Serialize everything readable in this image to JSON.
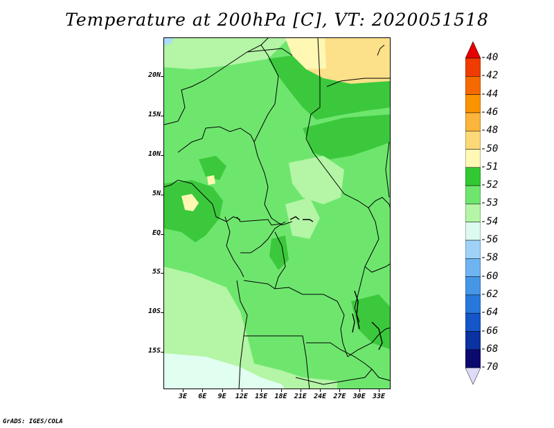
{
  "title": "Temperature at 200hPa [C], VT: 2020051518",
  "credit": "GrADS: IGES/COLA",
  "map": {
    "lat_labels": [
      "20N",
      "15N",
      "10N",
      "5N",
      "EQ",
      "5S",
      "10S",
      "15S"
    ],
    "lon_labels": [
      "3E",
      "6E",
      "9E",
      "12E",
      "15E",
      "18E",
      "21E",
      "24E",
      "27E",
      "30E",
      "33E"
    ],
    "field_colors": {
      "minus_50": "#fde08a",
      "minus_51": "#fff7b4",
      "minus_52": "#3cc83c",
      "minus_53": "#6ee66e",
      "minus_54": "#b4f5a6",
      "minus_55": "#e0fff0",
      "minus_56": "#a8dcfa"
    }
  },
  "colorbar": {
    "labels": [
      "-40",
      "-42",
      "-44",
      "-46",
      "-48",
      "-50",
      "-51",
      "-52",
      "-53",
      "-54",
      "-56",
      "-58",
      "-60",
      "-62",
      "-64",
      "-66",
      "-68",
      "-70"
    ],
    "colors": [
      "#e60000",
      "#f03c00",
      "#f56a00",
      "#f99400",
      "#fbb43c",
      "#fdd878",
      "#fff8b4",
      "#32c832",
      "#6ee66e",
      "#b4f5a6",
      "#dcfaf0",
      "#a0d2f8",
      "#6eb4f0",
      "#4696e6",
      "#2878dc",
      "#1456c8",
      "#0a32a0",
      "#0a0a6e"
    ],
    "top_cap_color": "#e60000",
    "bottom_cap_color": "#dcdcf8"
  }
}
